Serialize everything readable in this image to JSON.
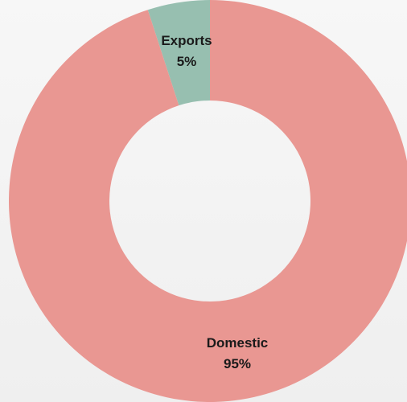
{
  "chart_data": {
    "type": "pie",
    "variant": "donut",
    "categories": [
      "Exports",
      "Domestic"
    ],
    "values": [
      5,
      95
    ],
    "data_labels": [
      "5%",
      "95%"
    ],
    "colors": [
      "#97bfb0",
      "#e99792"
    ],
    "legend": "none"
  }
}
